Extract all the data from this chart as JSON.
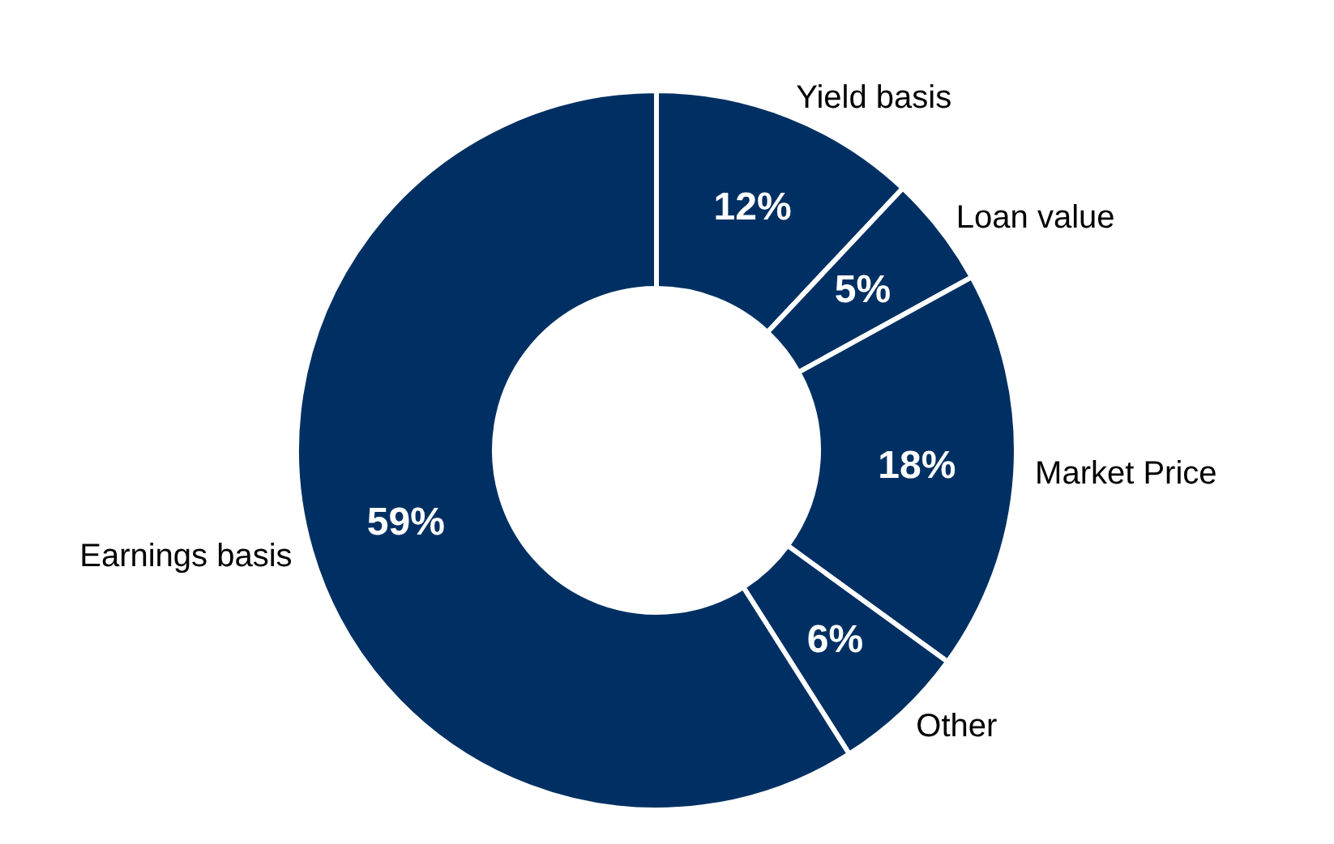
{
  "chart_data": {
    "type": "donut",
    "categories": [
      "Yield basis",
      "Loan value",
      "Market Price",
      "Other",
      "Earnings basis"
    ],
    "values": [
      12,
      5,
      18,
      6,
      59
    ],
    "colors": [
      "#003063",
      "#003063",
      "#003063",
      "#003063",
      "#003063"
    ],
    "value_labels": [
      "12%",
      "5%",
      "18%",
      "6%",
      "59%"
    ]
  }
}
